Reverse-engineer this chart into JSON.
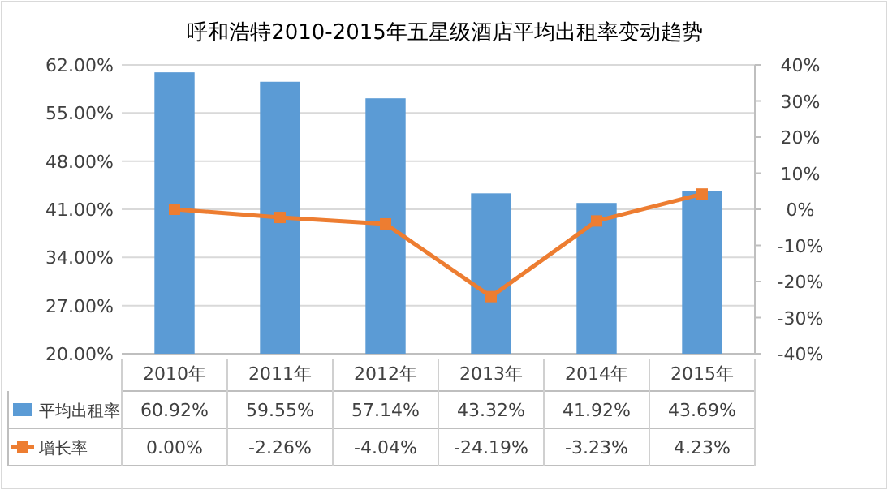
{
  "chart_data": {
    "type": "bar",
    "title": "呼和浩特2010-2015年五星级酒店平均出租率变动趋势",
    "categories": [
      "2010年",
      "2011年",
      "2012年",
      "2013年",
      "2014年",
      "2015年"
    ],
    "series": [
      {
        "name": "平均出租率",
        "color": "#5b9bd5",
        "values": [
          60.92,
          59.55,
          57.14,
          43.32,
          41.92,
          43.69
        ],
        "value_labels": [
          "60.92%",
          "59.55%",
          "57.14%",
          "43.32%",
          "41.92%",
          "43.69%"
        ]
      },
      {
        "name": "增长率",
        "type": "line",
        "axis": "y2",
        "color": "#ed7d31",
        "marker": "square",
        "values": [
          0.0,
          -2.26,
          -4.04,
          -24.19,
          -3.23,
          4.23
        ],
        "value_labels": [
          "0.00%",
          "-2.26%",
          "-4.04%",
          "-24.19%",
          "-3.23%",
          "4.23%"
        ]
      }
    ],
    "ylim": [
      20,
      62
    ],
    "yticks": [
      {
        "value": 20,
        "label": "20.00%"
      },
      {
        "value": 27,
        "label": "27.00%"
      },
      {
        "value": 34,
        "label": "34.00%"
      },
      {
        "value": 41,
        "label": "41.00%"
      },
      {
        "value": 48,
        "label": "48.00%"
      },
      {
        "value": 55,
        "label": "55.00%"
      },
      {
        "value": 62,
        "label": "62.00%"
      }
    ],
    "y2lim": [
      -40,
      40
    ],
    "y2ticks": [
      {
        "value": -40,
        "label": "-40%"
      },
      {
        "value": -30,
        "label": "-30%"
      },
      {
        "value": -20,
        "label": "-20%"
      },
      {
        "value": -10,
        "label": "-10%"
      },
      {
        "value": 0,
        "label": "0%"
      },
      {
        "value": 10,
        "label": "10%"
      },
      {
        "value": 20,
        "label": "20%"
      },
      {
        "value": 30,
        "label": "30%"
      },
      {
        "value": 40,
        "label": "40%"
      }
    ],
    "grid": "y",
    "legend": "bottom"
  }
}
